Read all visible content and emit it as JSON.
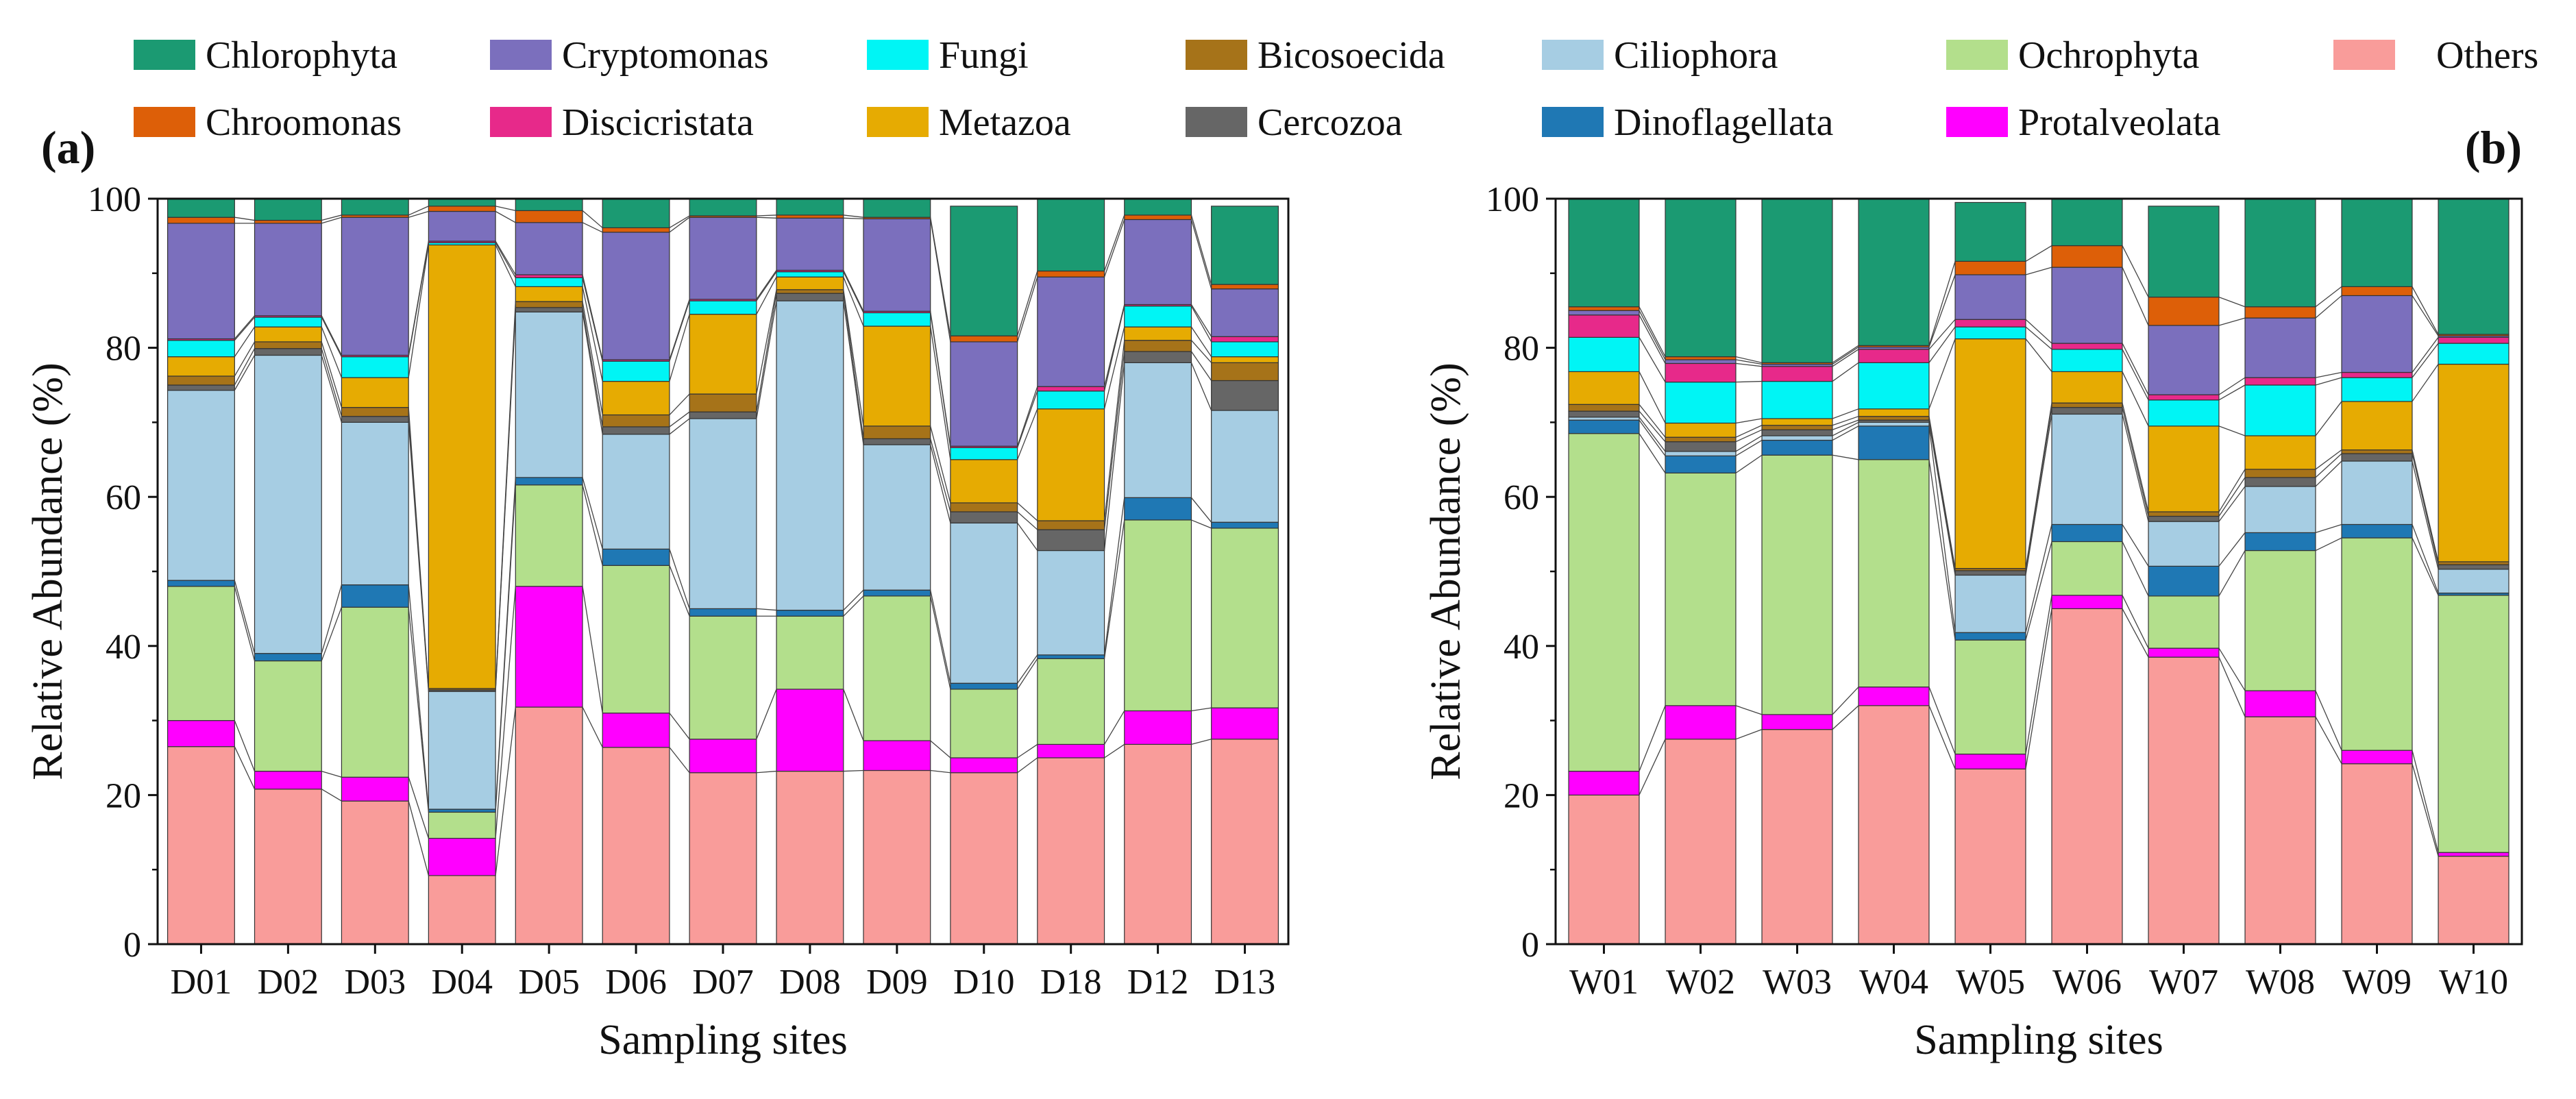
{
  "legend": {
    "items": [
      {
        "name": "Chlorophyta",
        "color": "#1b9a72"
      },
      {
        "name": "Cryptomonas",
        "color": "#7b6fbd"
      },
      {
        "name": "Fungi",
        "color": "#00f5f5"
      },
      {
        "name": "Bicosoecida",
        "color": "#a67319"
      },
      {
        "name": "Ciliophora",
        "color": "#a6cde3"
      },
      {
        "name": "Ochrophyta",
        "color": "#b3df8c"
      },
      {
        "name": "Others",
        "color": "#f99c9a"
      },
      {
        "name": "Chroomonas",
        "color": "#dd5f08"
      },
      {
        "name": "Discicristata",
        "color": "#e7298a"
      },
      {
        "name": "Metazoa",
        "color": "#e6ab02"
      },
      {
        "name": "Cercozoa",
        "color": "#666666"
      },
      {
        "name": "Dinoflagellata",
        "color": "#1f78b4"
      },
      {
        "name": "Protalveolata",
        "color": "#ff00ff"
      }
    ]
  },
  "chart_data": [
    {
      "type": "bar",
      "stacked": true,
      "panel_label": "(a)",
      "xlabel": "Sampling sites",
      "ylabel": "Relative Abundance (%)",
      "ylim": [
        0,
        100
      ],
      "yticks": [
        "0",
        "20",
        "40",
        "60",
        "80",
        "100"
      ],
      "categories": [
        "D01",
        "D02",
        "D03",
        "D04",
        "D05",
        "D06",
        "D07",
        "D08",
        "D09",
        "D10",
        "D18",
        "D12",
        "D13"
      ],
      "series": [
        {
          "name": "Others",
          "values": [
            26.5,
            20.8,
            19.2,
            9.2,
            31.8,
            26.4,
            23.0,
            23.2,
            23.3,
            23.0,
            25.0,
            26.8,
            27.5
          ]
        },
        {
          "name": "Protalveolata",
          "values": [
            3.5,
            2.4,
            3.2,
            5.0,
            16.2,
            4.6,
            4.5,
            11.0,
            4.0,
            2.0,
            1.8,
            4.5,
            4.2
          ]
        },
        {
          "name": "Ochrophyta",
          "values": [
            18.0,
            14.8,
            22.8,
            3.5,
            13.6,
            19.8,
            16.5,
            9.8,
            19.4,
            9.2,
            11.5,
            25.6,
            24.1
          ]
        },
        {
          "name": "Dinoflagellata",
          "values": [
            0.8,
            1.0,
            3.0,
            0.4,
            1.0,
            2.2,
            1.0,
            0.8,
            0.8,
            0.8,
            0.5,
            3.0,
            0.8
          ]
        },
        {
          "name": "Ciliophora",
          "values": [
            25.5,
            40.0,
            21.8,
            15.8,
            22.2,
            15.4,
            25.5,
            41.5,
            19.5,
            21.5,
            14.0,
            18.1,
            15.0
          ]
        },
        {
          "name": "Cercozoa",
          "values": [
            0.7,
            0.9,
            0.8,
            0.2,
            0.6,
            1.0,
            0.9,
            1.0,
            0.8,
            1.5,
            2.8,
            1.5,
            4.0
          ]
        },
        {
          "name": "Bicosoecida",
          "values": [
            1.2,
            0.9,
            1.2,
            0.2,
            0.8,
            1.6,
            2.4,
            0.5,
            1.7,
            1.2,
            1.2,
            1.5,
            2.4
          ]
        },
        {
          "name": "Metazoa",
          "values": [
            2.6,
            2.0,
            4.0,
            59.5,
            2.0,
            4.5,
            10.7,
            1.7,
            13.4,
            5.8,
            15.0,
            1.8,
            0.8
          ]
        },
        {
          "name": "Fungi",
          "values": [
            2.2,
            1.3,
            2.8,
            0.3,
            1.2,
            2.7,
            1.8,
            0.7,
            1.8,
            1.6,
            2.4,
            2.8,
            2.0
          ]
        },
        {
          "name": "Discicristata",
          "values": [
            0.2,
            0.2,
            0.2,
            0.2,
            0.4,
            0.2,
            0.2,
            0.2,
            0.2,
            0.2,
            0.6,
            0.2,
            0.7
          ]
        },
        {
          "name": "Cryptomonas",
          "values": [
            15.5,
            12.4,
            18.5,
            4.0,
            7.0,
            17.1,
            11.0,
            7.0,
            12.4,
            14.0,
            14.7,
            11.4,
            6.4
          ]
        },
        {
          "name": "Chroomonas",
          "values": [
            0.8,
            0.4,
            0.3,
            0.7,
            1.6,
            0.6,
            0.2,
            0.4,
            0.2,
            0.8,
            0.8,
            0.6,
            0.6
          ]
        },
        {
          "name": "Chlorophyta",
          "values": [
            2.5,
            2.9,
            2.2,
            1.0,
            1.6,
            3.9,
            2.3,
            2.2,
            2.5,
            17.4,
            9.7,
            2.2,
            10.5
          ]
        }
      ]
    },
    {
      "type": "bar",
      "stacked": true,
      "panel_label": "(b)",
      "xlabel": "Sampling sites",
      "ylabel": "Relative Abundance (%)",
      "ylim": [
        0,
        100
      ],
      "yticks": [
        "0",
        "20",
        "40",
        "60",
        "80",
        "100"
      ],
      "categories": [
        "W01",
        "W02",
        "W03",
        "W04",
        "W05",
        "W06",
        "W07",
        "W08",
        "W09",
        "W10"
      ],
      "series": [
        {
          "name": "Others",
          "values": [
            20.0,
            27.5,
            28.8,
            32.0,
            23.5,
            45.0,
            38.5,
            30.5,
            24.2,
            11.8
          ]
        },
        {
          "name": "Protalveolata",
          "values": [
            3.2,
            4.5,
            2.0,
            2.5,
            2.0,
            1.8,
            1.2,
            3.5,
            1.8,
            0.5
          ]
        },
        {
          "name": "Ochrophyta",
          "values": [
            45.3,
            31.2,
            34.8,
            30.5,
            15.3,
            7.2,
            7.0,
            18.8,
            28.5,
            34.5
          ]
        },
        {
          "name": "Dinoflagellata",
          "values": [
            1.8,
            2.3,
            2.0,
            4.5,
            1.0,
            2.3,
            4.0,
            2.4,
            1.8,
            0.3
          ]
        },
        {
          "name": "Ciliophora",
          "values": [
            0.4,
            0.6,
            0.6,
            0.5,
            7.7,
            14.8,
            6.0,
            6.2,
            8.5,
            3.2
          ]
        },
        {
          "name": "Cercozoa",
          "values": [
            0.8,
            1.3,
            0.8,
            0.3,
            0.6,
            0.9,
            0.7,
            1.2,
            1.0,
            0.6
          ]
        },
        {
          "name": "Bicosoecida",
          "values": [
            0.9,
            0.6,
            0.6,
            0.5,
            0.3,
            0.6,
            0.6,
            1.1,
            0.5,
            0.4
          ]
        },
        {
          "name": "Metazoa",
          "values": [
            4.4,
            1.9,
            0.9,
            1.0,
            30.8,
            4.2,
            11.5,
            4.5,
            6.5,
            26.5
          ]
        },
        {
          "name": "Fungi",
          "values": [
            4.6,
            5.5,
            5.0,
            6.2,
            1.6,
            3.0,
            3.5,
            6.8,
            3.2,
            2.8
          ]
        },
        {
          "name": "Discicristata",
          "values": [
            3.0,
            2.5,
            2.0,
            1.8,
            1.0,
            0.8,
            0.7,
            1.0,
            0.7,
            0.8
          ]
        },
        {
          "name": "Cryptomonas",
          "values": [
            0.6,
            0.5,
            0.3,
            0.3,
            6.0,
            10.2,
            9.3,
            8.0,
            10.3,
            0.2
          ]
        },
        {
          "name": "Chroomonas",
          "values": [
            0.5,
            0.4,
            0.2,
            0.2,
            1.8,
            2.9,
            3.8,
            1.5,
            1.2,
            0.2
          ]
        },
        {
          "name": "Chlorophyta",
          "values": [
            14.5,
            21.2,
            22.0,
            19.7,
            7.9,
            6.3,
            12.2,
            14.5,
            11.8,
            18.2
          ]
        }
      ]
    }
  ]
}
